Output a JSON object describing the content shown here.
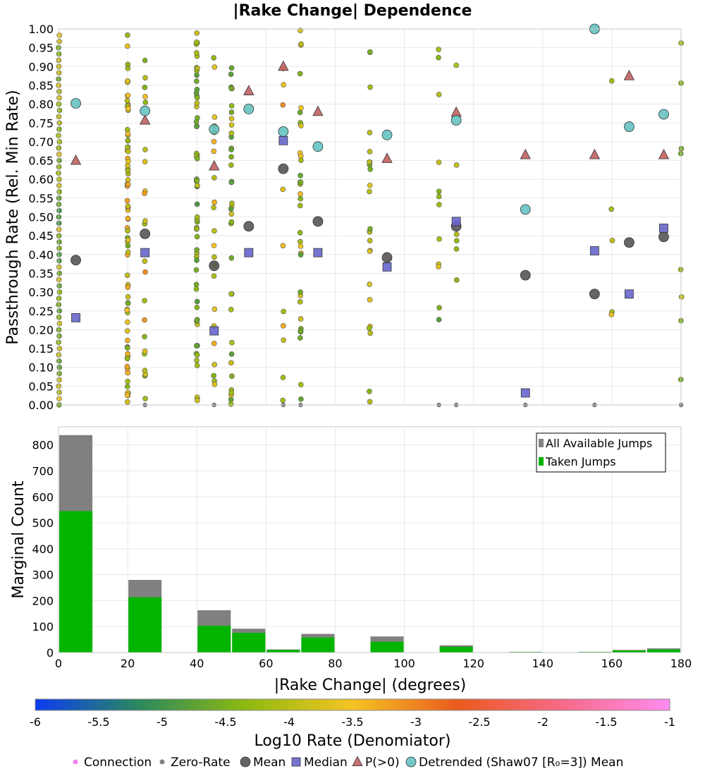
{
  "chart_data": [
    {
      "type": "scatter",
      "title": "|Rake Change| Dependence",
      "xlabel": "",
      "ylabel": "Passthrough Rate (Rel. Min Rate)",
      "xlim": [
        0,
        180
      ],
      "ylim": [
        0,
        1
      ],
      "grid": true,
      "yticks": [
        "0.00",
        "0.05",
        "0.10",
        "0.15",
        "0.20",
        "0.25",
        "0.30",
        "0.35",
        "0.40",
        "0.45",
        "0.50",
        "0.55",
        "0.60",
        "0.65",
        "0.70",
        "0.75",
        "0.80",
        "0.85",
        "0.90",
        "0.95",
        "1.00"
      ],
      "summary_series": [
        {
          "name": "Mean",
          "marker": "circle",
          "color": "#555555",
          "points": [
            [
              5,
              0.385
            ],
            [
              25,
              0.455
            ],
            [
              45,
              0.37
            ],
            [
              55,
              0.475
            ],
            [
              65,
              0.628
            ],
            [
              75,
              0.488
            ],
            [
              95,
              0.392
            ],
            [
              115,
              0.475
            ],
            [
              135,
              0.345
            ],
            [
              155,
              0.295
            ],
            [
              165,
              0.432
            ],
            [
              175,
              0.447
            ]
          ]
        },
        {
          "name": "Median",
          "marker": "square",
          "color": "#6666cc",
          "points": [
            [
              5,
              0.232
            ],
            [
              25,
              0.405
            ],
            [
              45,
              0.197
            ],
            [
              55,
              0.405
            ],
            [
              65,
              0.703
            ],
            [
              75,
              0.405
            ],
            [
              95,
              0.367
            ],
            [
              115,
              0.488
            ],
            [
              135,
              0.032
            ],
            [
              155,
              0.41
            ],
            [
              165,
              0.295
            ],
            [
              175,
              0.47
            ]
          ]
        },
        {
          "name": "P(>0)",
          "marker": "triangle",
          "color": "#c06060",
          "points": [
            [
              5,
              0.65
            ],
            [
              25,
              0.757
            ],
            [
              45,
              0.635
            ],
            [
              55,
              0.835
            ],
            [
              65,
              0.9
            ],
            [
              75,
              0.78
            ],
            [
              95,
              0.655
            ],
            [
              115,
              0.778
            ],
            [
              135,
              0.665
            ],
            [
              155,
              0.665
            ],
            [
              165,
              0.875
            ],
            [
              175,
              0.665
            ]
          ]
        },
        {
          "name": "Detrended (Shaw07 [R₀=3]) Mean",
          "marker": "circle",
          "color": "#66c2c2",
          "points": [
            [
              5,
              0.802
            ],
            [
              25,
              0.782
            ],
            [
              45,
              0.733
            ],
            [
              55,
              0.787
            ],
            [
              65,
              0.727
            ],
            [
              75,
              0.687
            ],
            [
              95,
              0.718
            ],
            [
              115,
              0.757
            ],
            [
              135,
              0.52
            ],
            [
              155,
              1.0
            ],
            [
              165,
              0.74
            ],
            [
              175,
              0.773
            ]
          ]
        }
      ],
      "scatter_columns": [
        {
          "x": 0,
          "n": 60,
          "log_range": [
            -5.0,
            -3.6
          ]
        },
        {
          "x": 20,
          "n": 80,
          "log_range": [
            -4.6,
            -3.2
          ]
        },
        {
          "x": 25,
          "n": 22,
          "log_range": [
            -4.6,
            -3.0
          ]
        },
        {
          "x": 40,
          "n": 60,
          "log_range": [
            -4.9,
            -3.8
          ]
        },
        {
          "x": 45,
          "n": 22,
          "log_range": [
            -4.6,
            -3.3
          ]
        },
        {
          "x": 50,
          "n": 36,
          "log_range": [
            -4.8,
            -3.6
          ]
        },
        {
          "x": 65,
          "n": 10,
          "log_range": [
            -4.2,
            -3.0
          ]
        },
        {
          "x": 70,
          "n": 34,
          "log_range": [
            -4.8,
            -3.4
          ]
        },
        {
          "x": 90,
          "n": 24,
          "log_range": [
            -4.6,
            -3.6
          ]
        },
        {
          "x": 110,
          "n": 12,
          "log_range": [
            -4.8,
            -3.6
          ]
        },
        {
          "x": 115,
          "n": 6,
          "log_range": [
            -4.4,
            -3.8
          ]
        },
        {
          "x": 160,
          "n": 5,
          "log_range": [
            -4.2,
            -3.5
          ]
        },
        {
          "x": 180,
          "n": 8,
          "log_range": [
            -4.6,
            -3.9
          ]
        }
      ]
    },
    {
      "type": "bar",
      "xlabel": "|Rake Change| (degrees)",
      "ylabel": "Marginal Count",
      "xlim": [
        0,
        180
      ],
      "ylim": [
        0,
        870
      ],
      "grid": true,
      "xticks": [
        0,
        20,
        40,
        60,
        80,
        100,
        120,
        140,
        160,
        180
      ],
      "yticks": [
        0,
        100,
        200,
        300,
        400,
        500,
        600,
        700,
        800
      ],
      "legend_position": "top-right",
      "bins": [
        {
          "x0": 0,
          "x1": 10,
          "all": 838,
          "taken": 545
        },
        {
          "x0": 10,
          "x1": 20,
          "all": 0,
          "taken": 0
        },
        {
          "x0": 20,
          "x1": 30,
          "all": 280,
          "taken": 213
        },
        {
          "x0": 30,
          "x1": 40,
          "all": 0,
          "taken": 0
        },
        {
          "x0": 40,
          "x1": 50,
          "all": 163,
          "taken": 103
        },
        {
          "x0": 50,
          "x1": 60,
          "all": 92,
          "taken": 76
        },
        {
          "x0": 60,
          "x1": 70,
          "all": 12,
          "taken": 10
        },
        {
          "x0": 70,
          "x1": 80,
          "all": 72,
          "taken": 58
        },
        {
          "x0": 80,
          "x1": 90,
          "all": 0,
          "taken": 0
        },
        {
          "x0": 90,
          "x1": 100,
          "all": 62,
          "taken": 42
        },
        {
          "x0": 100,
          "x1": 110,
          "all": 0,
          "taken": 0
        },
        {
          "x0": 110,
          "x1": 120,
          "all": 28,
          "taken": 22
        },
        {
          "x0": 120,
          "x1": 130,
          "all": 0,
          "taken": 0
        },
        {
          "x0": 130,
          "x1": 140,
          "all": 3,
          "taken": 2
        },
        {
          "x0": 140,
          "x1": 150,
          "all": 0,
          "taken": 0
        },
        {
          "x0": 150,
          "x1": 160,
          "all": 3,
          "taken": 2
        },
        {
          "x0": 160,
          "x1": 170,
          "all": 10,
          "taken": 8
        },
        {
          "x0": 170,
          "x1": 180,
          "all": 16,
          "taken": 12
        }
      ],
      "series": [
        {
          "name": "All Available Jumps",
          "color": "#808080"
        },
        {
          "name": "Taken Jumps",
          "color": "#00b400"
        }
      ]
    }
  ],
  "colorbar": {
    "label": "Log10 Rate (Denomiator)",
    "range": [
      -6,
      -1
    ],
    "ticks": [
      "-6",
      "-5.5",
      "-5",
      "-4.5",
      "-4",
      "-3.5",
      "-3",
      "-2.5",
      "-2",
      "-1.5",
      "-1"
    ],
    "stops": [
      "#0a3cf0",
      "#2d8a5c",
      "#8fba10",
      "#f5c323",
      "#eb5a1e",
      "#f76a8a",
      "#ff8cf0"
    ]
  },
  "footer_legend": [
    {
      "label": "Connection",
      "marker": "small-dot",
      "color": "#ee82ee"
    },
    {
      "label": "Zero-Rate",
      "marker": "small-dot",
      "color": "#808080"
    },
    {
      "label": "Mean",
      "marker": "circle",
      "color": "#555555"
    },
    {
      "label": "Median",
      "marker": "square",
      "color": "#6666cc"
    },
    {
      "label": "P(>0)",
      "marker": "triangle",
      "color": "#c06060"
    },
    {
      "label": "Detrended (Shaw07 [R₀=3]) Mean",
      "marker": "circle",
      "color": "#66c2c2"
    }
  ]
}
